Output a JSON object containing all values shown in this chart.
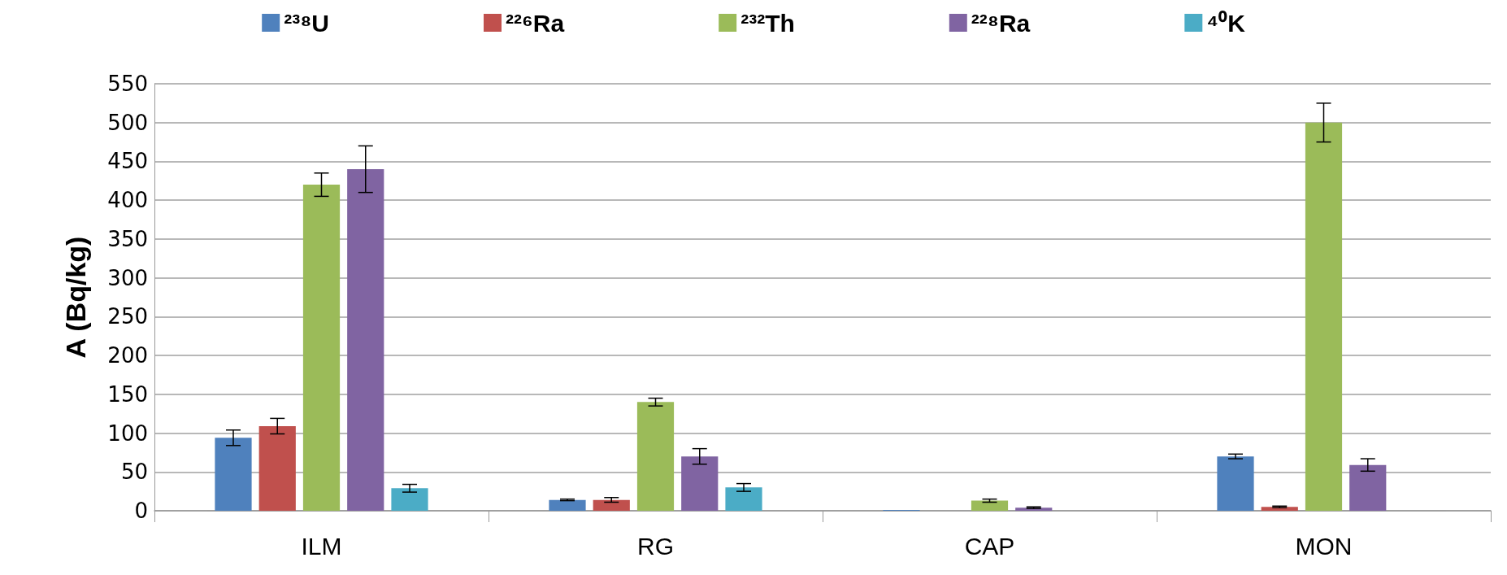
{
  "chart_data": {
    "type": "bar",
    "ylabel": "A (Bq/kg)",
    "categories": [
      "ILM",
      "RG",
      "CAP",
      "MON"
    ],
    "series": [
      {
        "name": "²³⁸U",
        "color": "#4f81bd",
        "values": [
          94,
          14,
          1,
          70
        ],
        "errors": [
          10,
          1,
          null,
          3
        ]
      },
      {
        "name": "²²⁶Ra",
        "color": "#c0504d",
        "values": [
          109,
          14,
          null,
          5
        ],
        "errors": [
          10,
          3,
          null,
          1
        ]
      },
      {
        "name": "²³²Th",
        "color": "#9bbb59",
        "values": [
          420,
          140,
          13,
          500
        ],
        "errors": [
          15,
          5,
          2,
          25
        ]
      },
      {
        "name": "²²⁸Ra",
        "color": "#8064a2",
        "values": [
          440,
          70,
          4,
          59
        ],
        "errors": [
          30,
          10,
          1,
          8
        ]
      },
      {
        "name": "⁴⁰K",
        "color": "#4bacc6",
        "values": [
          29,
          30,
          null,
          null
        ],
        "errors": [
          5,
          5,
          null,
          null
        ]
      }
    ],
    "ylim": [
      0,
      550
    ],
    "yticks": [
      0,
      50,
      100,
      150,
      200,
      250,
      300,
      350,
      400,
      450,
      500,
      550
    ],
    "grid": "y",
    "legend": "top"
  }
}
